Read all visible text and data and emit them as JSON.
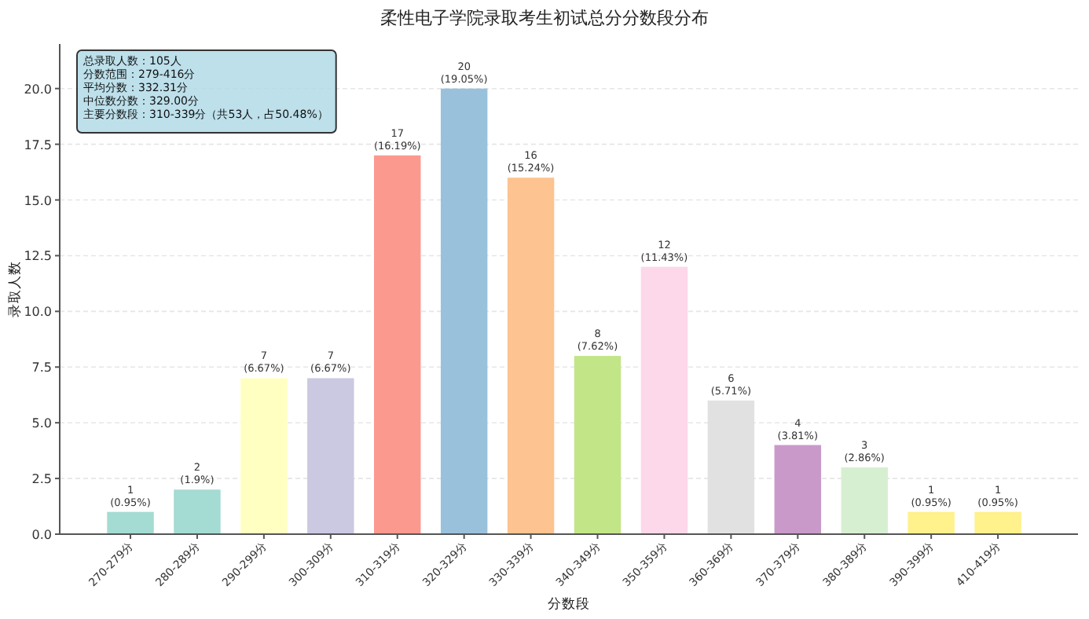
{
  "chart_data": {
    "type": "bar",
    "title": "柔性电子学院录取考生初试总分分数段分布",
    "xlabel": "分数段",
    "ylabel": "录取人数",
    "categories": [
      "270-279分",
      "280-289分",
      "290-299分",
      "300-309分",
      "310-319分",
      "320-329分",
      "330-339分",
      "340-349分",
      "350-359分",
      "360-369分",
      "370-379分",
      "380-389分",
      "390-399分",
      "410-419分"
    ],
    "values": [
      1,
      2,
      7,
      7,
      17,
      20,
      16,
      8,
      12,
      6,
      4,
      3,
      1,
      1
    ],
    "colors": [
      "#a4dbd2",
      "#a4dbd2",
      "#ffffc2",
      "#cbc8e1",
      "#fc998e",
      "#99c1dc",
      "#fdc390",
      "#c2e587",
      "#fdd7ea",
      "#e1e1e1",
      "#c999ca",
      "#d6efd1",
      "#fff18c",
      "#fff18c"
    ],
    "value_labels": [
      "1\n(0.95%)",
      "2\n(1.9%)",
      "7\n(6.67%)",
      "7\n(6.67%)",
      "17\n(16.19%)",
      "20\n(19.05%)",
      "16\n(15.24%)",
      "8\n(7.62%)",
      "12\n(11.43%)",
      "6\n(5.71%)",
      "4\n(3.81%)",
      "3\n(2.86%)",
      "1\n(0.95%)",
      "1\n(0.95%)"
    ],
    "ylim": [
      0,
      22
    ],
    "yticks": [
      {
        "value": 0,
        "label": "0.0"
      },
      {
        "value": 2.5,
        "label": "2.5"
      },
      {
        "value": 5,
        "label": "5.0"
      },
      {
        "value": 7.5,
        "label": "7.5"
      },
      {
        "value": 10,
        "label": "10.0"
      },
      {
        "value": 12.5,
        "label": "12.5"
      },
      {
        "value": 15,
        "label": "15.0"
      },
      {
        "value": 17.5,
        "label": "17.5"
      },
      {
        "value": 20,
        "label": "20.0"
      }
    ],
    "grid": "y",
    "annotations": [
      "总录取人数：105人",
      "分数范围：279-416分",
      "平均分数：332.31分",
      "中位数分数：329.00分",
      "主要分数段：310-339分（共53人，占50.48%）"
    ]
  }
}
